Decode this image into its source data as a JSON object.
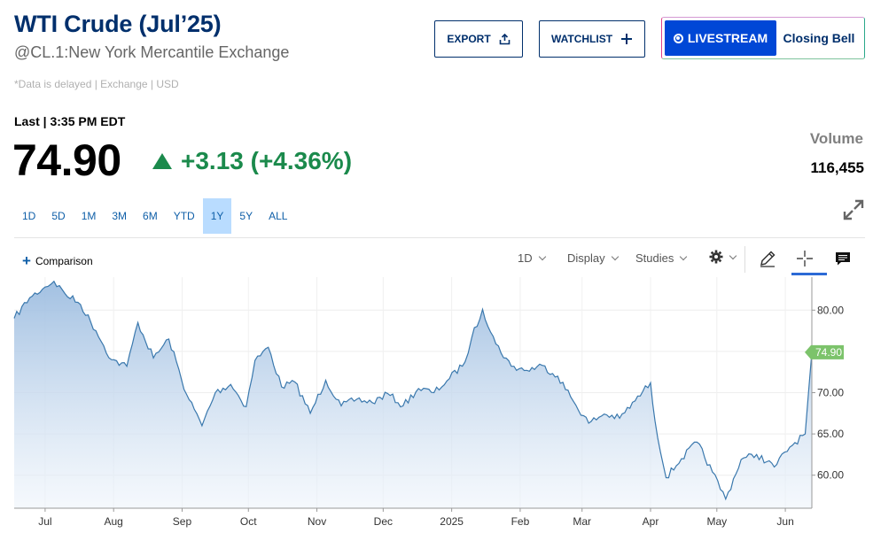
{
  "header": {
    "title": "WTI Crude (Jul’25)",
    "subtitle": "@CL.1:New York Mercantile Exchange",
    "delayed_note": "*Data is delayed | Exchange | USD"
  },
  "actions": {
    "export_label": "EXPORT",
    "watchlist_label": "WATCHLIST",
    "livestream_label": "LIVESTREAM",
    "closing_bell_label": "Closing Bell"
  },
  "quote": {
    "last_label": "Last | 3:35 PM EDT",
    "price": "74.90",
    "change": "+3.13 (+4.36%)",
    "volume_label": "Volume",
    "volume": "116,455"
  },
  "ranges": [
    "1D",
    "5D",
    "1M",
    "3M",
    "6M",
    "YTD",
    "1Y",
    "5Y",
    "ALL"
  ],
  "active_range": "1Y",
  "toolbar": {
    "comparison_label": "Comparison",
    "interval_label": "1D",
    "display_label": "Display",
    "studies_label": "Studies"
  },
  "colors": {
    "brand": "#002f6c",
    "positive": "#1b8a4c",
    "link": "#0f5fa8",
    "live": "#0047d6",
    "line": "#3a78ad",
    "price_tag": "#7cc36b"
  },
  "chart_data": {
    "type": "area",
    "price_tag": "74.90",
    "x_tick_labels": [
      "Jul",
      "Aug",
      "Sep",
      "Oct",
      "Nov",
      "Dec",
      "2025",
      "Feb",
      "Mar",
      "Apr",
      "May",
      "Jun"
    ],
    "y_tick_labels": [
      "80.00",
      "75.00",
      "70.00",
      "65.00",
      "60.00"
    ],
    "ylim": [
      56.0,
      84.0
    ],
    "grid": true,
    "series": [
      {
        "x": [
          "2024-06-17",
          "2024-06-24",
          "2024-07-01",
          "2024-07-05",
          "2024-07-10",
          "2024-07-17",
          "2024-07-24",
          "2024-07-31",
          "2024-08-07",
          "2024-08-12",
          "2024-08-19",
          "2024-08-26",
          "2024-09-03",
          "2024-09-10",
          "2024-09-16",
          "2024-09-23",
          "2024-09-30",
          "2024-10-04",
          "2024-10-10",
          "2024-10-16",
          "2024-10-22",
          "2024-10-29",
          "2024-11-05",
          "2024-11-12",
          "2024-11-19",
          "2024-11-26",
          "2024-12-03",
          "2024-12-10",
          "2024-12-17",
          "2024-12-24",
          "2024-12-31",
          "2025-01-07",
          "2025-01-10",
          "2025-01-15",
          "2025-01-21",
          "2025-01-28",
          "2025-02-04",
          "2025-02-11",
          "2025-02-18",
          "2025-02-25",
          "2025-03-04",
          "2025-03-11",
          "2025-03-18",
          "2025-03-25",
          "2025-04-01",
          "2025-04-03",
          "2025-04-08",
          "2025-04-15",
          "2025-04-22",
          "2025-04-29",
          "2025-05-05",
          "2025-05-12",
          "2025-05-19",
          "2025-05-27",
          "2025-06-03",
          "2025-06-10",
          "2025-06-13"
        ],
        "values": [
          79.0,
          81.5,
          82.8,
          83.5,
          82.0,
          80.7,
          77.5,
          74.0,
          73.2,
          78.5,
          74.2,
          76.5,
          69.8,
          66.0,
          70.0,
          71.0,
          68.3,
          73.9,
          75.5,
          70.7,
          71.3,
          67.5,
          71.5,
          68.4,
          69.2,
          68.8,
          69.9,
          68.4,
          70.5,
          70.0,
          71.7,
          73.7,
          76.6,
          80.1,
          75.9,
          73.2,
          72.7,
          73.3,
          72.0,
          69.0,
          66.3,
          67.4,
          66.9,
          69.0,
          71.2,
          66.6,
          59.7,
          62.0,
          64.0,
          60.4,
          57.1,
          61.9,
          62.5,
          61.0,
          63.4,
          65.0,
          74.9
        ]
      }
    ]
  }
}
